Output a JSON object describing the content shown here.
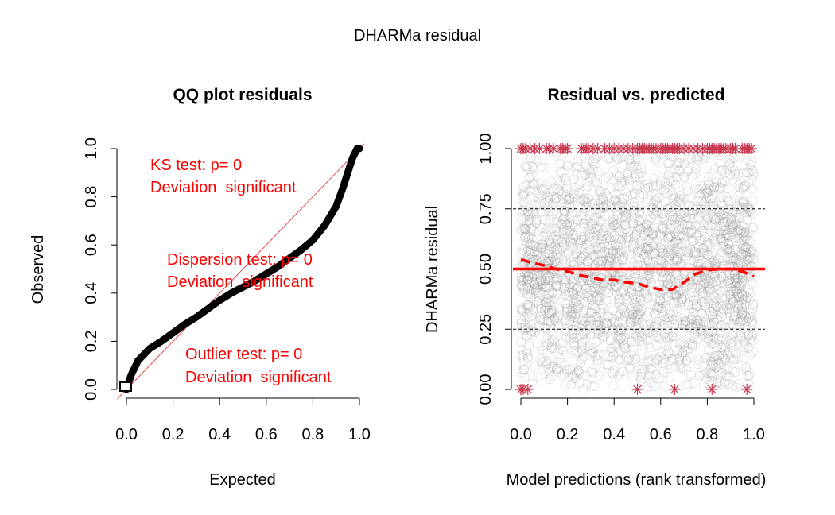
{
  "figure": {
    "title": "DHARMa residual"
  },
  "chart_data": [
    {
      "type": "scatter",
      "title": "QQ plot residuals",
      "xlabel": "Expected",
      "ylabel": "Observed",
      "xlim": [
        0,
        1
      ],
      "ylim": [
        0,
        1
      ],
      "xticks": [
        "0.0",
        "0.2",
        "0.4",
        "0.6",
        "0.8",
        "1.0"
      ],
      "yticks": [
        "0.0",
        "0.2",
        "0.4",
        "0.6",
        "0.8",
        "1.0"
      ],
      "grid": false,
      "reference_line": "y = x",
      "reference_color": "#e05050",
      "point_color": "#000000",
      "qq_curve": {
        "x": [
          0.0,
          0.01,
          0.02,
          0.05,
          0.1,
          0.15,
          0.2,
          0.25,
          0.3,
          0.35,
          0.4,
          0.45,
          0.5,
          0.55,
          0.6,
          0.65,
          0.7,
          0.75,
          0.8,
          0.85,
          0.9,
          0.93,
          0.95,
          0.97,
          0.99,
          1.0
        ],
        "y": [
          0.0,
          0.03,
          0.06,
          0.12,
          0.17,
          0.2,
          0.235,
          0.27,
          0.3,
          0.335,
          0.37,
          0.4,
          0.425,
          0.45,
          0.48,
          0.51,
          0.545,
          0.58,
          0.62,
          0.68,
          0.76,
          0.84,
          0.9,
          0.96,
          1.0,
          1.0
        ]
      },
      "annotations": [
        {
          "line1": "KS test: p= 0",
          "line2": "Deviation  significant"
        },
        {
          "line1": "Dispersion test: p= 0",
          "line2": "Deviation  significant"
        },
        {
          "line1": "Outlier test: p= 0",
          "line2": "Deviation  significant"
        }
      ],
      "annotation_color": "#ff0000"
    },
    {
      "type": "scatter",
      "title": "Residual vs. predicted",
      "xlabel": "Model predictions (rank transformed)",
      "ylabel": "DHARMa residual",
      "xlim": [
        0,
        1
      ],
      "ylim": [
        0,
        1
      ],
      "xticks": [
        "0.0",
        "0.2",
        "0.4",
        "0.6",
        "0.8",
        "1.0"
      ],
      "yticks": [
        "0.00",
        "0.25",
        "0.50",
        "0.75",
        "1.00"
      ],
      "grid": false,
      "hlines": [
        {
          "y": 0.25,
          "style": "dashed",
          "color": "#000000"
        },
        {
          "y": 0.5,
          "style": "solid",
          "color": "#ff0000"
        },
        {
          "y": 0.75,
          "style": "dashed",
          "color": "#000000"
        }
      ],
      "point_color": "#808080",
      "outlier_color": "#c8384f",
      "smooth_curve": {
        "x": [
          0.0,
          0.05,
          0.1,
          0.15,
          0.2,
          0.25,
          0.3,
          0.35,
          0.4,
          0.45,
          0.5,
          0.55,
          0.6,
          0.65,
          0.7,
          0.75,
          0.8,
          0.85,
          0.9,
          0.95,
          1.0
        ],
        "y": [
          0.54,
          0.525,
          0.515,
          0.5,
          0.49,
          0.475,
          0.465,
          0.455,
          0.455,
          0.445,
          0.44,
          0.425,
          0.415,
          0.415,
          0.445,
          0.48,
          0.495,
          0.5,
          0.5,
          0.49,
          0.47
        ],
        "color": "#ff0000"
      },
      "outliers_top_x": [
        0.0,
        0.01,
        0.02,
        0.04,
        0.06,
        0.08,
        0.11,
        0.12,
        0.14,
        0.17,
        0.18,
        0.19,
        0.2,
        0.26,
        0.27,
        0.28,
        0.29,
        0.31,
        0.33,
        0.36,
        0.38,
        0.4,
        0.42,
        0.44,
        0.46,
        0.48,
        0.5,
        0.51,
        0.52,
        0.53,
        0.54,
        0.55,
        0.56,
        0.57,
        0.58,
        0.6,
        0.61,
        0.62,
        0.63,
        0.64,
        0.65,
        0.66,
        0.67,
        0.68,
        0.7,
        0.72,
        0.74,
        0.76,
        0.78,
        0.8,
        0.81,
        0.82,
        0.83,
        0.84,
        0.85,
        0.86,
        0.87,
        0.88,
        0.9,
        0.91,
        0.92,
        0.95,
        0.96,
        0.97,
        0.98,
        0.99
      ],
      "outliers_bottom_x": [
        0.0,
        0.01,
        0.03,
        0.5,
        0.66,
        0.82,
        0.97
      ]
    }
  ]
}
